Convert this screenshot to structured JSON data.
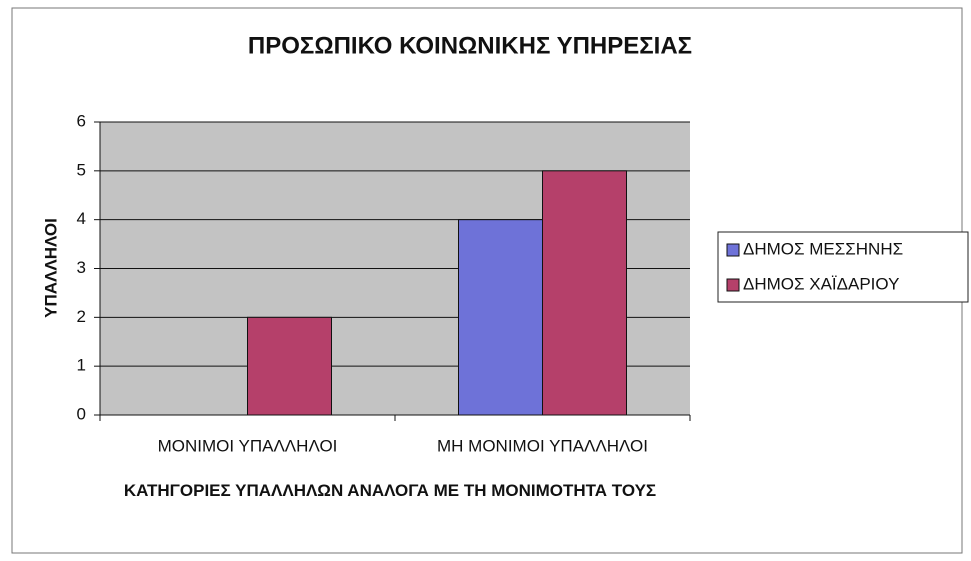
{
  "chart_data": {
    "type": "bar",
    "title": "ΠΡΟΣΩΠΙΚΟ ΚΟΙΝΩΝΙΚΗΣ ΥΠΗΡΕΣΙΑΣ",
    "x_label": "ΚΑΤΗΓΟΡΙΕΣ ΥΠΑΛΛΗΛΩΝ ΑΝΑΛΟΓΑ ΜΕ ΤΗ ΜΟΝΙΜΟΤΗΤΑ ΤΟΥΣ",
    "y_label": "ΥΠΑΛΛΗΛΟΙ",
    "categories": [
      "ΜΟΝΙΜΟΙ ΥΠΑΛΛΗΛΟΙ",
      "ΜΗ ΜΟΝΙΜΟΙ ΥΠΑΛΛΗΛΟΙ"
    ],
    "series": [
      {
        "name": "ΔΗΜΟΣ ΜΕΣΣΗΝΗΣ",
        "color": "#6e72d8",
        "values": [
          0,
          4
        ]
      },
      {
        "name": "ΔΗΜΟΣ ΧΑΪΔΑΡΙΟΥ",
        "color": "#b5406a",
        "values": [
          2,
          5
        ]
      }
    ],
    "ylim": [
      0,
      6
    ],
    "yticks": [
      0,
      1,
      2,
      3,
      4,
      5,
      6
    ],
    "grid": true,
    "legend": "right"
  }
}
